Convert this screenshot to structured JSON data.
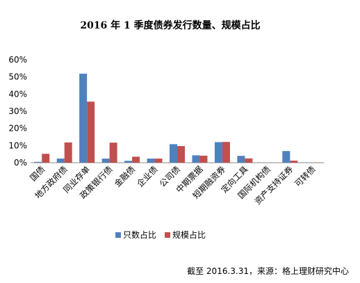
{
  "chart_data": {
    "type": "bar",
    "title": "2016 年 1 季度债券发行数量、规模占比",
    "categories": [
      "国债",
      "地方政府债",
      "同业存单",
      "政策银行债",
      "金融债",
      "企业债",
      "公司债",
      "中期票据",
      "短期融资券",
      "定向工具",
      "国际机构债",
      "资产支持证券",
      "可转债"
    ],
    "series": [
      {
        "name": "只数占比",
        "color": "#4f81bd",
        "values": [
          0.5,
          2.4,
          51.9,
          2.4,
          1.1,
          2.4,
          10.8,
          4.3,
          12.0,
          4.0,
          0.1,
          6.8,
          0.1
        ]
      },
      {
        "name": "规模占比",
        "color": "#c0504d",
        "values": [
          5.2,
          11.8,
          35.6,
          11.7,
          3.5,
          2.4,
          9.7,
          4.1,
          12.1,
          2.5,
          0.1,
          1.2,
          0.2
        ]
      }
    ],
    "y_ticks": [
      "0%",
      "10%",
      "20%",
      "30%",
      "40%",
      "50%",
      "60%"
    ],
    "ylim": [
      0,
      60
    ],
    "xlabel": "",
    "ylabel": "",
    "grid": false,
    "legend_position": "bottom",
    "source": "截至 2016.3.31，来源：格上理财研究中心"
  }
}
